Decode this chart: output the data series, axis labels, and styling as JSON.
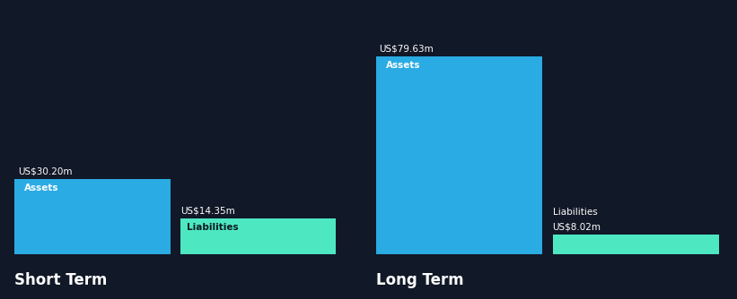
{
  "background_color": "#111827",
  "short_term": {
    "assets_value": 30.2,
    "liabilities_value": 14.35,
    "assets_label": "Assets",
    "liabilities_label": "Liabilities",
    "assets_color": "#2aabe3",
    "liabilities_color": "#4de8c2",
    "title": "Short Term"
  },
  "long_term": {
    "assets_value": 79.63,
    "liabilities_value": 8.02,
    "assets_label": "Assets",
    "liabilities_label": "Liabilities",
    "assets_color": "#2aabe3",
    "liabilities_color": "#4de8c2",
    "title": "Long Term"
  },
  "text_color": "#ffffff",
  "label_fontsize": 7.5,
  "value_fontsize": 7.5,
  "title_fontsize": 12,
  "max_val": 79.63
}
